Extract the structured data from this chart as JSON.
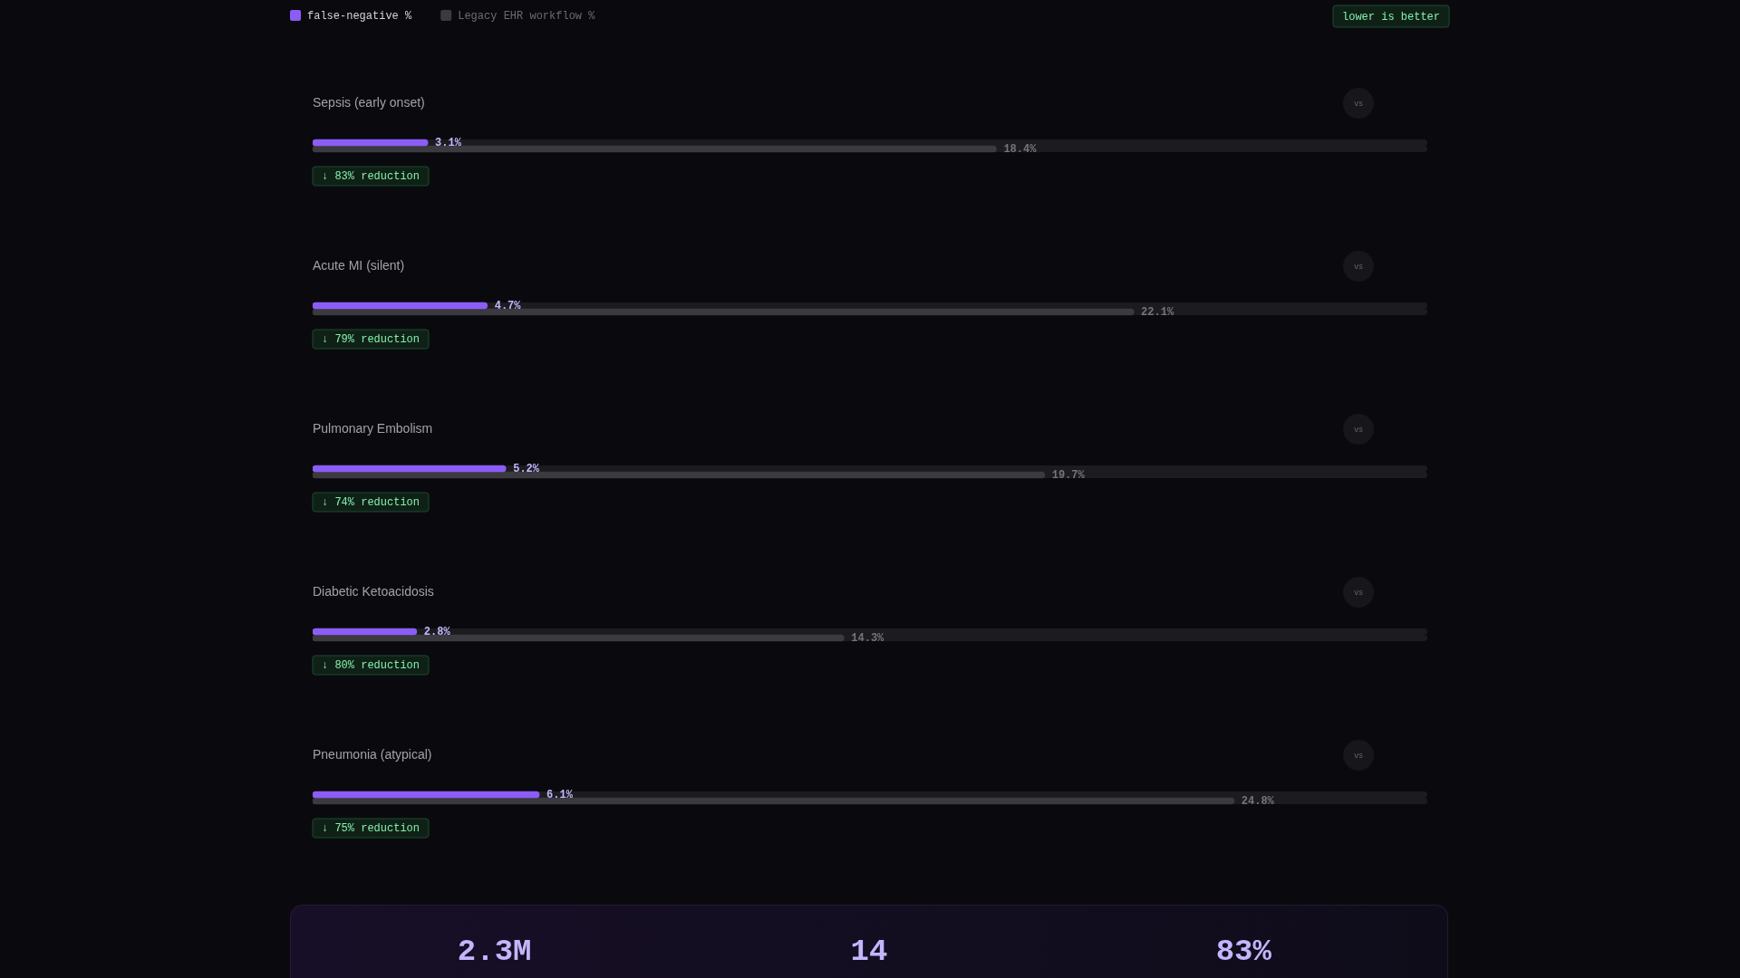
{
  "chart_data": [
    {
      "type": "bar",
      "orientation": "horizontal",
      "categories": [
        "Sepsis (early onset)",
        "Acute MI (silent)",
        "Pulmonary Embolism",
        "Diabetic Ketoacidosis",
        "Pneumonia (atypical)"
      ],
      "series": [
        {
          "name": "false-negative %",
          "color": "#8b5cf6",
          "values": [
            3.1,
            4.7,
            5.2,
            2.8,
            6.1
          ],
          "value_labels": [
            "3.1%",
            "4.7%",
            "5.2%",
            "2.8%",
            "6.1%"
          ]
        },
        {
          "name": "Legacy EHR workflow %",
          "color": "#3a3a3f",
          "values": [
            18.4,
            22.1,
            19.7,
            14.3,
            24.8
          ],
          "value_labels": [
            "18.4%",
            "22.1%",
            "19.7%",
            "14.3%",
            "24.8%"
          ]
        }
      ],
      "xlim": [
        0,
        30
      ],
      "tick_labels": "y",
      "legend": "top left",
      "annotations": [
        "lower is better",
        "vs",
        "↓ 83% reduction",
        "↓ 79% reduction",
        "↓ 74% reduction",
        "↓ 80% reduction",
        "↓ 75% reduction"
      ]
    },
    {
      "type": "other",
      "annotations": [
        "2.3M",
        "14",
        "83%"
      ]
    }
  ]
}
